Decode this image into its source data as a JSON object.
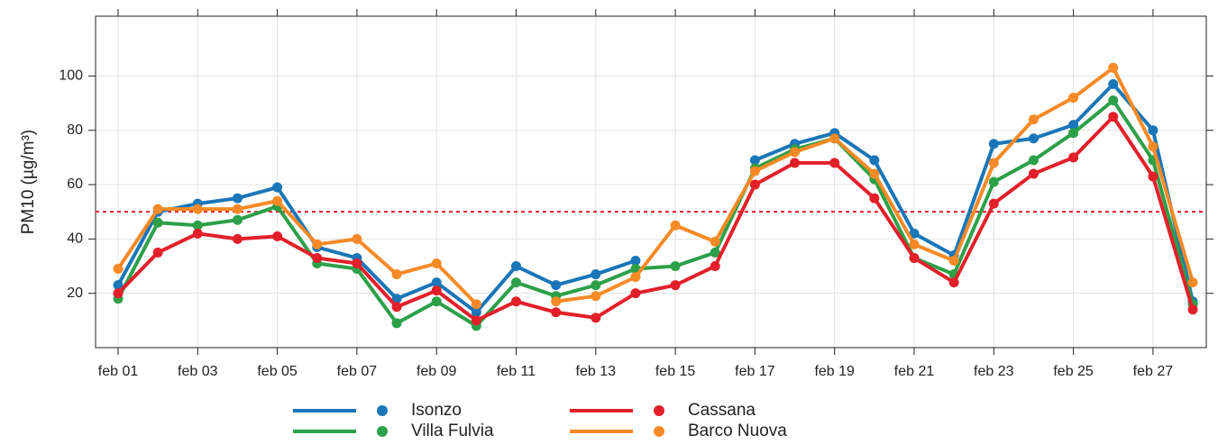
{
  "chart_data": {
    "type": "line",
    "y_label": "PM10 (µg/m³)",
    "categories": [
      "feb 01",
      null,
      "feb 03",
      null,
      "feb 05",
      null,
      "feb 07",
      null,
      "feb 09",
      null,
      "feb 11",
      null,
      "feb 13",
      null,
      "feb 15",
      null,
      "feb 17",
      null,
      "feb 19",
      null,
      "feb 21",
      null,
      "feb 23",
      null,
      "feb 25",
      null,
      "feb 27",
      null
    ],
    "ylim": [
      0,
      122
    ],
    "yticks": [
      20,
      40,
      60,
      80,
      100
    ],
    "grid": true,
    "reference_line": {
      "value": 50,
      "color": "#e3202a"
    },
    "series": [
      {
        "name": "Isonzo",
        "color": "#1a76b8",
        "values": [
          23,
          50,
          53,
          55,
          59,
          37,
          33,
          18,
          24,
          13,
          30,
          23,
          27,
          32,
          null,
          null,
          69,
          75,
          79,
          69,
          42,
          34,
          75,
          77,
          82,
          97,
          80,
          17
        ]
      },
      {
        "name": "Villa Fulvia",
        "color": "#2ca048",
        "values": [
          18,
          46,
          45,
          47,
          52,
          31,
          29,
          9,
          17,
          8,
          24,
          19,
          23,
          29,
          30,
          35,
          66,
          73,
          77,
          62,
          33,
          27,
          61,
          69,
          79,
          91,
          69,
          16
        ]
      },
      {
        "name": "Cassana",
        "color": "#e3202a",
        "values": [
          20,
          35,
          42,
          40,
          41,
          33,
          31,
          15,
          21,
          10,
          17,
          13,
          11,
          20,
          23,
          30,
          60,
          68,
          68,
          55,
          33,
          24,
          53,
          64,
          70,
          85,
          63,
          14
        ]
      },
      {
        "name": "Barco Nuova",
        "color": "#f58a27",
        "values": [
          29,
          51,
          51,
          51,
          54,
          38,
          40,
          27,
          31,
          16,
          null,
          17,
          19,
          26,
          45,
          39,
          65,
          72,
          77,
          64,
          38,
          32,
          68,
          84,
          92,
          103,
          74,
          24
        ]
      }
    ]
  }
}
